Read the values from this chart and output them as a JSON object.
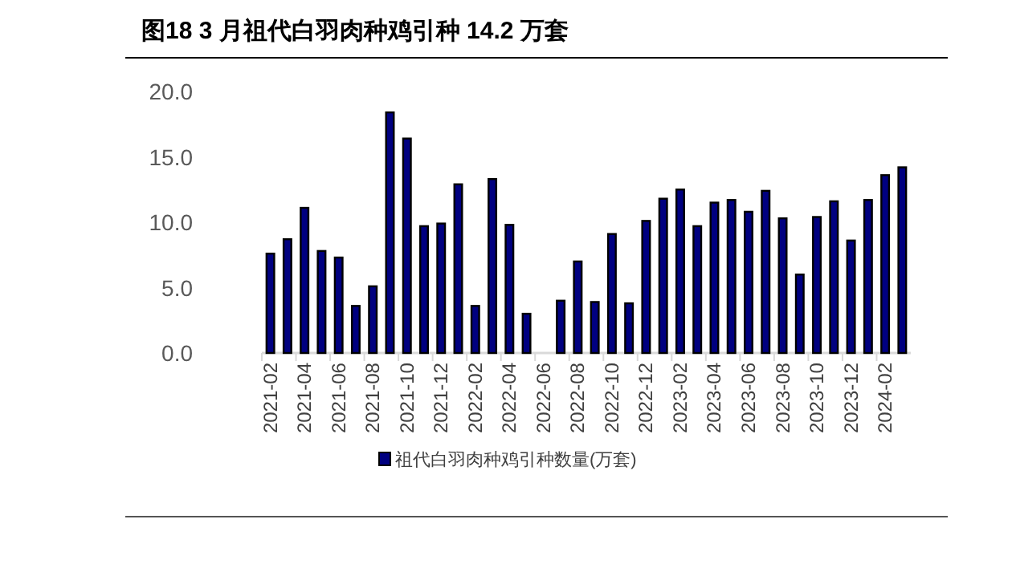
{
  "chart_data": {
    "type": "bar",
    "title": "图18 3 月祖代白羽肉种鸡引种 14.2 万套",
    "categories": [
      "2021-02",
      null,
      "2021-04",
      null,
      "2021-06",
      null,
      "2021-08",
      null,
      "2021-10",
      null,
      "2021-12",
      null,
      "2022-02",
      null,
      "2022-04",
      null,
      "2022-06",
      null,
      "2022-08",
      null,
      "2022-10",
      null,
      "2022-12",
      null,
      "2023-02",
      null,
      "2023-04",
      null,
      "2023-06",
      null,
      "2023-08",
      null,
      "2023-10",
      null,
      "2023-12",
      null,
      "2024-02",
      null
    ],
    "series": [
      {
        "name": "祖代白羽肉种鸡引种数量(万套)",
        "color": "#000080",
        "values": [
          7.6,
          8.7,
          11.1,
          7.8,
          7.3,
          3.6,
          5.1,
          18.4,
          16.4,
          9.7,
          9.9,
          12.9,
          3.6,
          13.3,
          9.8,
          3.0,
          0,
          4.0,
          7.0,
          3.9,
          9.1,
          3.8,
          10.1,
          11.8,
          12.5,
          9.7,
          11.5,
          11.7,
          10.8,
          12.4,
          10.3,
          6.0,
          10.4,
          11.6,
          8.6,
          11.7,
          13.6,
          14.2
        ]
      }
    ],
    "ylim": [
      0,
      20
    ],
    "yticks": [
      {
        "value": 0,
        "label": "0.0"
      },
      {
        "value": 5,
        "label": "5.0"
      },
      {
        "value": 10,
        "label": "10.0"
      },
      {
        "value": 15,
        "label": "15.0"
      },
      {
        "value": 20,
        "label": "20.0"
      }
    ],
    "grid": false,
    "legend": "bottom"
  }
}
